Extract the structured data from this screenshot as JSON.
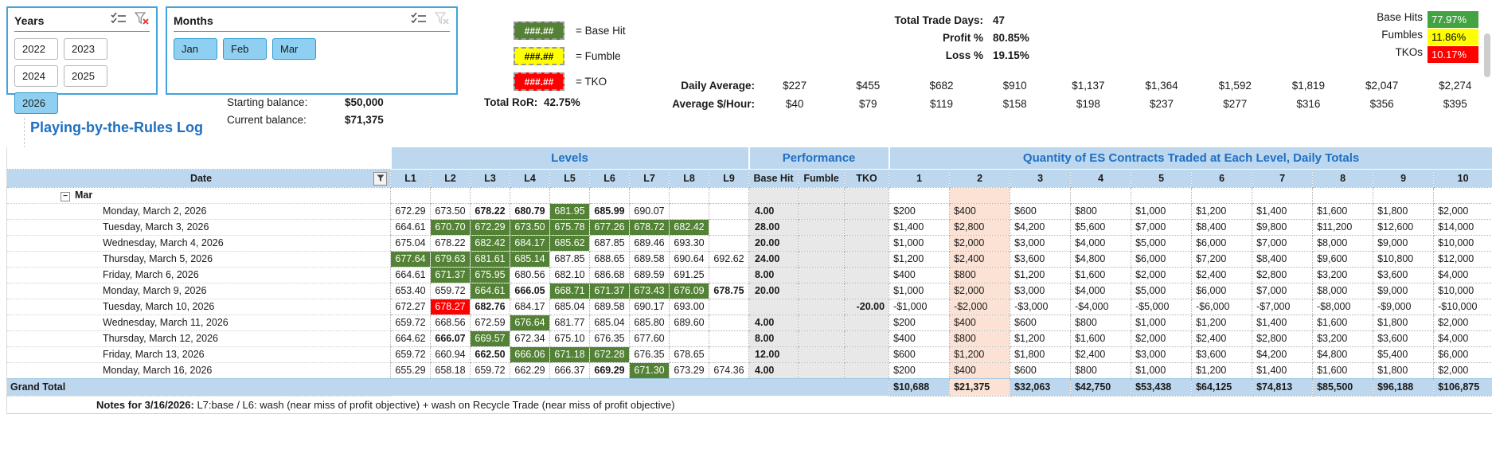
{
  "colors": {
    "header_fill": "#bdd7ee",
    "header_text": "#1f6fc4",
    "peach": "#fbe2d5",
    "perf_grey": "#e9e8e8",
    "green_cell": "#538135",
    "red_cell": "#fe0000",
    "badge_green": "#43a342",
    "badge_yellow": "#ffff00",
    "badge_red": "#fe0000",
    "slicer_selected": "#8fd0f2",
    "slicer_border": "#41a3da"
  },
  "slicers": {
    "years": {
      "title": "Years",
      "clear_filter_active": true,
      "items": [
        {
          "label": "2022",
          "selected": false
        },
        {
          "label": "2023",
          "selected": false
        },
        {
          "label": "2024",
          "selected": false
        },
        {
          "label": "2025",
          "selected": false
        },
        {
          "label": "2026",
          "selected": true
        }
      ]
    },
    "months": {
      "title": "Months",
      "clear_filter_active": false,
      "items": [
        {
          "label": "Jan",
          "selected": true
        },
        {
          "label": "Feb",
          "selected": true
        },
        {
          "label": "Mar",
          "selected": true
        }
      ]
    }
  },
  "legend": {
    "items": [
      {
        "pattern": "###.##",
        "label": "= Base Hit",
        "bg": "#538135",
        "fg": "#ffffff"
      },
      {
        "pattern": "###.##",
        "label": "= Fumble",
        "bg": "#ffff00",
        "fg": "#000000"
      },
      {
        "pattern": "###.##",
        "label": "= TKO",
        "bg": "#fe0000",
        "fg": "#ffffff"
      }
    ]
  },
  "stats": {
    "rows": [
      {
        "label": "Total Trade Days:",
        "value": "47"
      },
      {
        "label": "Profit %",
        "value": "80.85%"
      },
      {
        "label": "Loss %",
        "value": "19.15%"
      }
    ],
    "badges": [
      {
        "label": "Base Hits",
        "value": "77.97%",
        "bg": "#43a342",
        "fg": "#ffffff"
      },
      {
        "label": "Fumbles",
        "value": "11.86%",
        "bg": "#ffff00",
        "fg": "#000000"
      },
      {
        "label": "TKOs",
        "value": "10.17%",
        "bg": "#fe0000",
        "fg": "#ffffff"
      }
    ]
  },
  "averages": {
    "daily_label": "Daily Average:",
    "daily": [
      "$227",
      "$455",
      "$682",
      "$910",
      "$1,137",
      "$1,364",
      "$1,592",
      "$1,819",
      "$2,047",
      "$2,274"
    ],
    "hourly_label": "Average $/Hour:",
    "hourly": [
      "$40",
      "$79",
      "$119",
      "$158",
      "$198",
      "$237",
      "$277",
      "$316",
      "$356",
      "$395"
    ]
  },
  "balances": {
    "starting_label": "Starting balance:",
    "starting": "$50,000",
    "current_label": "Current balance:",
    "current": "$71,375",
    "ror_label": "Total RoR:",
    "ror": "42.75%"
  },
  "log": {
    "title": "Playing-by-the-Rules Log",
    "group_headers": {
      "levels": "Levels",
      "performance": "Performance",
      "quantity": "Quantity of ES Contracts Traded at Each Level, Daily Totals"
    },
    "columns": {
      "date": "Date",
      "levels": [
        "L1",
        "L2",
        "L3",
        "L4",
        "L5",
        "L6",
        "L7",
        "L8",
        "L9"
      ],
      "performance": [
        "Base Hit",
        "Fumble",
        "TKO"
      ],
      "quantity": [
        "1",
        "2",
        "3",
        "4",
        "5",
        "6",
        "7",
        "8",
        "9",
        "10"
      ],
      "highlighted_quantity_column": "2"
    },
    "group_row": {
      "label": "Mar",
      "collapsed": false
    },
    "rows": [
      {
        "date": "Monday, March 2, 2026",
        "levels": [
          {
            "v": "672.29"
          },
          {
            "v": "673.50"
          },
          {
            "v": "678.22",
            "bold": true
          },
          {
            "v": "680.79",
            "bold": true
          },
          {
            "v": "681.95",
            "hl": "green"
          },
          {
            "v": "685.99",
            "bold": true
          },
          {
            "v": "690.07"
          },
          {
            "v": ""
          },
          {
            "v": ""
          }
        ],
        "base_hit": "4.00",
        "fumble": "",
        "tko": "",
        "quantities": [
          "$200",
          "$400",
          "$600",
          "$800",
          "$1,000",
          "$1,200",
          "$1,400",
          "$1,600",
          "$1,800",
          "$2,000"
        ]
      },
      {
        "date": "Tuesday, March 3, 2026",
        "levels": [
          {
            "v": "664.61"
          },
          {
            "v": "670.70",
            "hl": "green"
          },
          {
            "v": "672.29",
            "hl": "green"
          },
          {
            "v": "673.50",
            "hl": "green"
          },
          {
            "v": "675.78",
            "hl": "green"
          },
          {
            "v": "677.26",
            "hl": "green"
          },
          {
            "v": "678.72",
            "hl": "green"
          },
          {
            "v": "682.42",
            "hl": "green"
          },
          {
            "v": ""
          }
        ],
        "base_hit": "28.00",
        "fumble": "",
        "tko": "",
        "quantities": [
          "$1,400",
          "$2,800",
          "$4,200",
          "$5,600",
          "$7,000",
          "$8,400",
          "$9,800",
          "$11,200",
          "$12,600",
          "$14,000"
        ]
      },
      {
        "date": "Wednesday, March 4, 2026",
        "levels": [
          {
            "v": "675.04"
          },
          {
            "v": "678.22"
          },
          {
            "v": "682.42",
            "hl": "green"
          },
          {
            "v": "684.17",
            "hl": "green"
          },
          {
            "v": "685.62",
            "hl": "green"
          },
          {
            "v": "687.85"
          },
          {
            "v": "689.46"
          },
          {
            "v": "693.30"
          },
          {
            "v": ""
          }
        ],
        "base_hit": "20.00",
        "fumble": "",
        "tko": "",
        "quantities": [
          "$1,000",
          "$2,000",
          "$3,000",
          "$4,000",
          "$5,000",
          "$6,000",
          "$7,000",
          "$8,000",
          "$9,000",
          "$10,000"
        ]
      },
      {
        "date": "Thursday, March 5, 2026",
        "levels": [
          {
            "v": "677.64",
            "hl": "green"
          },
          {
            "v": "679.63",
            "hl": "green"
          },
          {
            "v": "681.61",
            "hl": "green"
          },
          {
            "v": "685.14",
            "hl": "green"
          },
          {
            "v": "687.85"
          },
          {
            "v": "688.65"
          },
          {
            "v": "689.58"
          },
          {
            "v": "690.64"
          },
          {
            "v": "692.62"
          }
        ],
        "base_hit": "24.00",
        "fumble": "",
        "tko": "",
        "quantities": [
          "$1,200",
          "$2,400",
          "$3,600",
          "$4,800",
          "$6,000",
          "$7,200",
          "$8,400",
          "$9,600",
          "$10,800",
          "$12,000"
        ]
      },
      {
        "date": "Friday, March 6, 2026",
        "levels": [
          {
            "v": "664.61"
          },
          {
            "v": "671.37",
            "hl": "green"
          },
          {
            "v": "675.95",
            "hl": "green"
          },
          {
            "v": "680.56"
          },
          {
            "v": "682.10"
          },
          {
            "v": "686.68"
          },
          {
            "v": "689.59"
          },
          {
            "v": "691.25"
          },
          {
            "v": ""
          }
        ],
        "base_hit": "8.00",
        "fumble": "",
        "tko": "",
        "quantities": [
          "$400",
          "$800",
          "$1,200",
          "$1,600",
          "$2,000",
          "$2,400",
          "$2,800",
          "$3,200",
          "$3,600",
          "$4,000"
        ]
      },
      {
        "date": "Monday, March 9, 2026",
        "levels": [
          {
            "v": "653.40"
          },
          {
            "v": "659.72"
          },
          {
            "v": "664.61",
            "hl": "green"
          },
          {
            "v": "666.05",
            "bold": true
          },
          {
            "v": "668.71",
            "hl": "green"
          },
          {
            "v": "671.37",
            "hl": "green"
          },
          {
            "v": "673.43",
            "hl": "green"
          },
          {
            "v": "676.09",
            "hl": "green"
          },
          {
            "v": "678.75",
            "bold": true
          }
        ],
        "base_hit": "20.00",
        "fumble": "",
        "tko": "",
        "quantities": [
          "$1,000",
          "$2,000",
          "$3,000",
          "$4,000",
          "$5,000",
          "$6,000",
          "$7,000",
          "$8,000",
          "$9,000",
          "$10,000"
        ]
      },
      {
        "date": "Tuesday, March 10, 2026",
        "levels": [
          {
            "v": "672.27"
          },
          {
            "v": "678.27",
            "hl": "red"
          },
          {
            "v": "682.76",
            "bold": true
          },
          {
            "v": "684.17"
          },
          {
            "v": "685.04"
          },
          {
            "v": "689.58"
          },
          {
            "v": "690.17"
          },
          {
            "v": "693.00"
          },
          {
            "v": ""
          }
        ],
        "base_hit": "",
        "fumble": "",
        "tko": "-20.00",
        "quantities": [
          "-$1,000",
          "-$2,000",
          "-$3,000",
          "-$4,000",
          "-$5,000",
          "-$6,000",
          "-$7,000",
          "-$8,000",
          "-$9,000",
          "-$10,000"
        ]
      },
      {
        "date": "Wednesday, March 11, 2026",
        "levels": [
          {
            "v": "659.72"
          },
          {
            "v": "668.56"
          },
          {
            "v": "672.59"
          },
          {
            "v": "676.64",
            "hl": "green"
          },
          {
            "v": "681.77"
          },
          {
            "v": "685.04"
          },
          {
            "v": "685.80"
          },
          {
            "v": "689.60"
          },
          {
            "v": ""
          }
        ],
        "base_hit": "4.00",
        "fumble": "",
        "tko": "",
        "quantities": [
          "$200",
          "$400",
          "$600",
          "$800",
          "$1,000",
          "$1,200",
          "$1,400",
          "$1,600",
          "$1,800",
          "$2,000"
        ]
      },
      {
        "date": "Thursday, March 12, 2026",
        "levels": [
          {
            "v": "664.62"
          },
          {
            "v": "666.07",
            "bold": true
          },
          {
            "v": "669.57",
            "hl": "green"
          },
          {
            "v": "672.34"
          },
          {
            "v": "675.10"
          },
          {
            "v": "676.35"
          },
          {
            "v": "677.60"
          },
          {
            "v": ""
          },
          {
            "v": ""
          }
        ],
        "base_hit": "8.00",
        "fumble": "",
        "tko": "",
        "quantities": [
          "$400",
          "$800",
          "$1,200",
          "$1,600",
          "$2,000",
          "$2,400",
          "$2,800",
          "$3,200",
          "$3,600",
          "$4,000"
        ]
      },
      {
        "date": "Friday, March 13, 2026",
        "levels": [
          {
            "v": "659.72"
          },
          {
            "v": "660.94"
          },
          {
            "v": "662.50",
            "bold": true
          },
          {
            "v": "666.06",
            "hl": "green"
          },
          {
            "v": "671.18",
            "hl": "green"
          },
          {
            "v": "672.28",
            "hl": "green"
          },
          {
            "v": "676.35"
          },
          {
            "v": "678.65"
          },
          {
            "v": ""
          }
        ],
        "base_hit": "12.00",
        "fumble": "",
        "tko": "",
        "quantities": [
          "$600",
          "$1,200",
          "$1,800",
          "$2,400",
          "$3,000",
          "$3,600",
          "$4,200",
          "$4,800",
          "$5,400",
          "$6,000"
        ]
      },
      {
        "date": "Monday, March 16, 2026",
        "levels": [
          {
            "v": "655.29"
          },
          {
            "v": "658.18"
          },
          {
            "v": "659.72"
          },
          {
            "v": "662.29"
          },
          {
            "v": "666.37"
          },
          {
            "v": "669.29",
            "bold": true
          },
          {
            "v": "671.30",
            "hl": "green"
          },
          {
            "v": "673.29"
          },
          {
            "v": "674.36"
          }
        ],
        "base_hit": "4.00",
        "fumble": "",
        "tko": "",
        "quantities": [
          "$200",
          "$400",
          "$600",
          "$800",
          "$1,000",
          "$1,200",
          "$1,400",
          "$1,600",
          "$1,800",
          "$2,000"
        ]
      }
    ],
    "grand_total": {
      "label": "Grand Total",
      "quantities": [
        "$10,688",
        "$21,375",
        "$32,063",
        "$42,750",
        "$53,438",
        "$64,125",
        "$74,813",
        "$85,500",
        "$96,188",
        "$106,875"
      ]
    },
    "notes_label": "Notes for 3/16/2026:",
    "notes": "L7:base / L6: wash (near miss of profit objective) + wash on Recycle Trade (near miss of profit objective)"
  }
}
